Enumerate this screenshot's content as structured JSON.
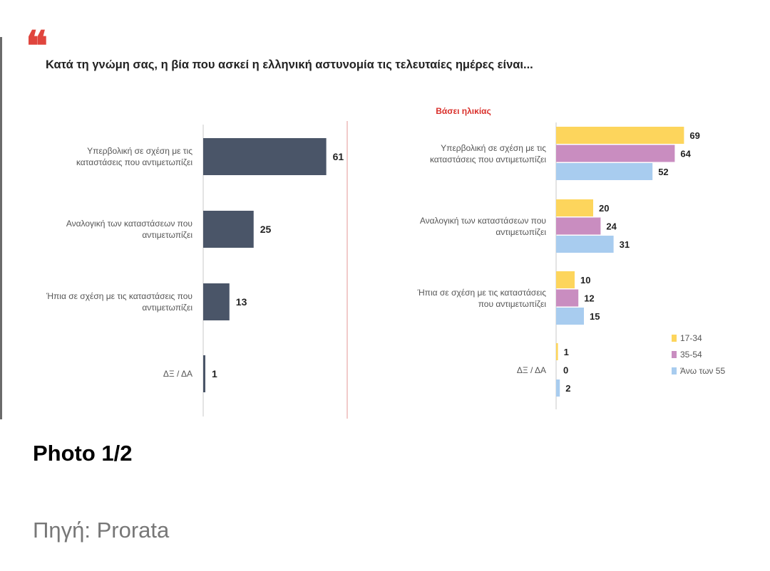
{
  "chart_data": [
    {
      "type": "bar",
      "orientation": "horizontal",
      "title": "Κατά τη γνώμη σας, η βία που ασκεί η ελληνική αστυνομία τις τελευταίες ημέρες είναι...",
      "categories": [
        [
          "Υπερβολική σε σχέση με τις",
          "καταστάσεις που αντιμετωπίζει"
        ],
        [
          "Αναλογική των καταστάσεων που",
          "αντιμετωπίζει"
        ],
        [
          "Ήπια σε σχέση με τις καταστάσεις που",
          "αντιμετωπίζει"
        ],
        [
          "ΔΞ / ΔΑ"
        ]
      ],
      "values": [
        61,
        25,
        13,
        1
      ],
      "color": "#4a5568",
      "xlim": [
        0,
        100
      ]
    },
    {
      "type": "bar",
      "orientation": "horizontal",
      "subtitle": "Βάσει ηλικίας",
      "categories": [
        [
          "Υπερβολική σε σχέση με τις",
          "καταστάσεις που αντιμετωπίζει"
        ],
        [
          "Αναλογική των καταστάσεων που",
          "αντιμετωπίζει"
        ],
        [
          "Ήπια σε σχέση με τις καταστάσεις",
          "που αντιμετωπίζει"
        ],
        [
          "ΔΞ / ΔΑ"
        ]
      ],
      "series": [
        {
          "name": "17-34",
          "color": "#fdd55c",
          "values": [
            69,
            20,
            10,
            1
          ]
        },
        {
          "name": "35-54",
          "color": "#c98dc0",
          "values": [
            64,
            24,
            12,
            0
          ]
        },
        {
          "name": "Άνω των 55",
          "color": "#a8ccef",
          "values": [
            52,
            31,
            15,
            2
          ]
        }
      ],
      "legend_position": "bottom-right",
      "xlim": [
        0,
        100
      ]
    }
  ],
  "page": {
    "quote_glyph": "❝",
    "photo_caption": "Photo 1/2",
    "source": "Πηγή: Prorata"
  }
}
